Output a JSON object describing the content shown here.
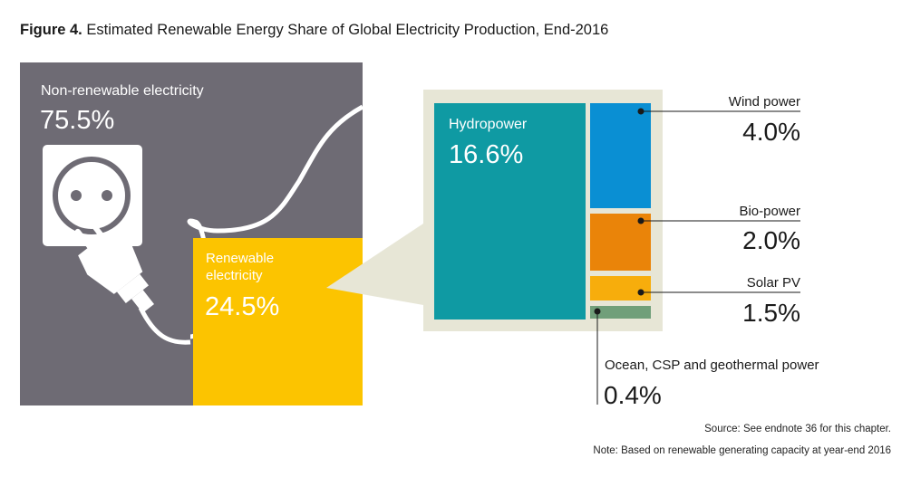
{
  "figure": {
    "number_label": "Figure 4.",
    "title": "Estimated Renewable Energy Share of Global Electricity Production, End-2016"
  },
  "chart_data": {
    "type": "treemap",
    "unit": "%",
    "segments": [
      {
        "label": "Non-renewable electricity",
        "value_label": "75.5%",
        "value": 75.5,
        "color": "#6e6b74"
      },
      {
        "label": "Renewable electricity",
        "label_lines": [
          "Renewable",
          "electricity"
        ],
        "value_label": "24.5%",
        "value": 24.5,
        "color": "#fcc400"
      }
    ],
    "renewable_breakdown": [
      {
        "label": "Hydropower",
        "value_label": "16.6%",
        "value": 16.6,
        "color": "#0f9aa3"
      },
      {
        "label": "Wind power",
        "value_label": "4.0%",
        "value": 4.0,
        "color": "#0a8fd3"
      },
      {
        "label": "Bio-power",
        "value_label": "2.0%",
        "value": 2.0,
        "color": "#ea8409"
      },
      {
        "label": "Solar PV",
        "value_label": "1.5%",
        "value": 1.5,
        "color": "#f7ad0c"
      },
      {
        "label": "Ocean, CSP and geothermal power",
        "value_label": "0.4%",
        "value": 0.4,
        "color": "#719f7a"
      }
    ],
    "callout_frame_color": "#e7e6d6",
    "leader_color": "#1a1a1a"
  },
  "notes": {
    "source": "Source: See endnote 36 for this chapter.",
    "note": "Note: Based on renewable generating capacity at year-end 2016"
  }
}
